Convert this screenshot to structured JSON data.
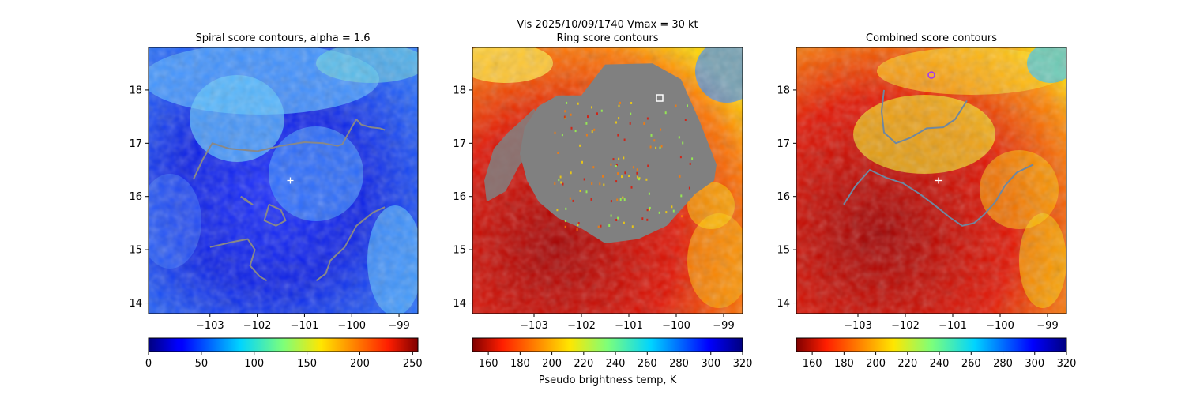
{
  "chart_data": {
    "type": "heatmap",
    "suptitle_line1": "Vis  2025/10/09/1740    Vmax = 30 kt",
    "xlim": [
      -104.3,
      -98.6
    ],
    "ylim": [
      13.8,
      18.8
    ],
    "xticks": [
      -103,
      -102,
      -101,
      -100,
      -99
    ],
    "yticks": [
      14,
      15,
      16,
      17,
      18
    ],
    "center": {
      "lon": -101.3,
      "lat": 16.3
    },
    "colors": {
      "spiral_contour": "#888888",
      "ring_mask": "#808080",
      "combined_contour": "#6f87a0",
      "center_marker": "#ffffff",
      "best_point": "#9b30ff"
    },
    "panels": [
      {
        "title": "Spiral score contours, alpha =  1.6",
        "field": "spiral score",
        "show_xticks": true,
        "colorbar": {
          "min": 0,
          "max": 255,
          "ticks": [
            0,
            50,
            100,
            150,
            200,
            250
          ],
          "cmap": "jet",
          "reversed": false,
          "label": ""
        },
        "contours": [
          [
            [
              -103.35,
              16.32
            ],
            [
              -103.15,
              16.7
            ],
            [
              -102.95,
              17.0
            ],
            [
              -102.6,
              16.9
            ],
            [
              -102.0,
              16.85
            ],
            [
              -101.5,
              16.95
            ],
            [
              -101.0,
              17.02
            ],
            [
              -100.6,
              17.0
            ],
            [
              -100.3,
              16.95
            ],
            [
              -100.2,
              16.98
            ],
            [
              -100.0,
              17.3
            ],
            [
              -99.9,
              17.45
            ],
            [
              -99.8,
              17.35
            ],
            [
              -99.6,
              17.3
            ],
            [
              -99.4,
              17.28
            ],
            [
              -99.3,
              17.25
            ]
          ],
          [
            [
              -102.35,
              16.0
            ],
            [
              -102.2,
              15.9
            ],
            [
              -102.1,
              15.85
            ],
            [
              -102.25,
              15.95
            ],
            [
              -102.35,
              16.0
            ]
          ],
          [
            [
              -101.75,
              15.85
            ],
            [
              -101.5,
              15.75
            ],
            [
              -101.4,
              15.55
            ],
            [
              -101.6,
              15.45
            ],
            [
              -101.85,
              15.55
            ],
            [
              -101.75,
              15.85
            ]
          ],
          [
            [
              -103.0,
              15.05
            ],
            [
              -102.5,
              15.15
            ],
            [
              -102.2,
              15.2
            ],
            [
              -102.05,
              15.0
            ],
            [
              -102.15,
              14.7
            ],
            [
              -101.95,
              14.5
            ],
            [
              -101.8,
              14.42
            ]
          ],
          [
            [
              -100.75,
              14.42
            ],
            [
              -100.55,
              14.55
            ],
            [
              -100.45,
              14.8
            ],
            [
              -100.15,
              15.05
            ],
            [
              -99.9,
              15.45
            ],
            [
              -99.55,
              15.7
            ],
            [
              -99.3,
              15.8
            ]
          ]
        ]
      },
      {
        "title": "Ring score contours",
        "field": "ring score",
        "show_xticks": true,
        "colorbar": {
          "min": 150,
          "max": 320,
          "ticks": [
            160,
            180,
            200,
            220,
            240,
            260,
            280,
            300,
            320
          ],
          "cmap": "jet",
          "reversed": true,
          "label": "Pseudo brightness temp, K"
        },
        "mask_region": [
          [
            -102.0,
            17.9
          ],
          [
            -101.5,
            18.48
          ],
          [
            -100.5,
            18.5
          ],
          [
            -99.9,
            18.2
          ],
          [
            -99.5,
            17.4
          ],
          [
            -99.15,
            16.6
          ],
          [
            -99.2,
            16.3
          ],
          [
            -99.6,
            16.05
          ],
          [
            -100.2,
            15.45
          ],
          [
            -100.8,
            15.2
          ],
          [
            -101.5,
            15.12
          ],
          [
            -102.0,
            15.4
          ],
          [
            -102.5,
            15.6
          ],
          [
            -102.9,
            15.9
          ],
          [
            -103.15,
            16.3
          ],
          [
            -103.3,
            16.8
          ],
          [
            -103.2,
            17.3
          ],
          [
            -102.9,
            17.7
          ],
          [
            -102.5,
            17.9
          ]
        ],
        "mask_fragments": [
          [
            [
              -103.3,
              17.4
            ],
            [
              -103.0,
              17.65
            ],
            [
              -102.85,
              17.4
            ],
            [
              -102.95,
              16.9
            ],
            [
              -103.3,
              16.6
            ],
            [
              -103.6,
              16.1
            ],
            [
              -104.0,
              15.9
            ],
            [
              -104.05,
              16.3
            ],
            [
              -103.85,
              16.9
            ],
            [
              -103.55,
              17.2
            ]
          ]
        ],
        "best_point": {
          "lon": -100.35,
          "lat": 17.85
        }
      },
      {
        "title": "Combined score contours",
        "field": "combined score",
        "show_xticks": true,
        "colorbar": {
          "min": 150,
          "max": 320,
          "ticks": [
            160,
            180,
            200,
            220,
            240,
            260,
            280,
            300,
            320
          ],
          "cmap": "jet",
          "reversed": true,
          "label": ""
        },
        "contours": [
          [
            [
              -102.45,
              18.0
            ],
            [
              -102.5,
              17.6
            ],
            [
              -102.45,
              17.2
            ],
            [
              -102.2,
              17.0
            ],
            [
              -101.9,
              17.1
            ],
            [
              -101.55,
              17.28
            ],
            [
              -101.2,
              17.3
            ],
            [
              -100.95,
              17.45
            ],
            [
              -100.7,
              17.8
            ]
          ],
          [
            [
              -103.3,
              15.85
            ],
            [
              -103.05,
              16.2
            ],
            [
              -102.75,
              16.5
            ],
            [
              -102.4,
              16.35
            ],
            [
              -102.05,
              16.25
            ],
            [
              -101.7,
              16.05
            ],
            [
              -101.4,
              15.85
            ],
            [
              -101.05,
              15.6
            ],
            [
              -100.8,
              15.45
            ],
            [
              -100.55,
              15.5
            ],
            [
              -100.35,
              15.65
            ],
            [
              -100.1,
              15.9
            ],
            [
              -99.9,
              16.2
            ],
            [
              -99.65,
              16.45
            ],
            [
              -99.3,
              16.6
            ]
          ]
        ],
        "best_point": {
          "lon": -101.45,
          "lat": 18.28
        }
      }
    ]
  }
}
